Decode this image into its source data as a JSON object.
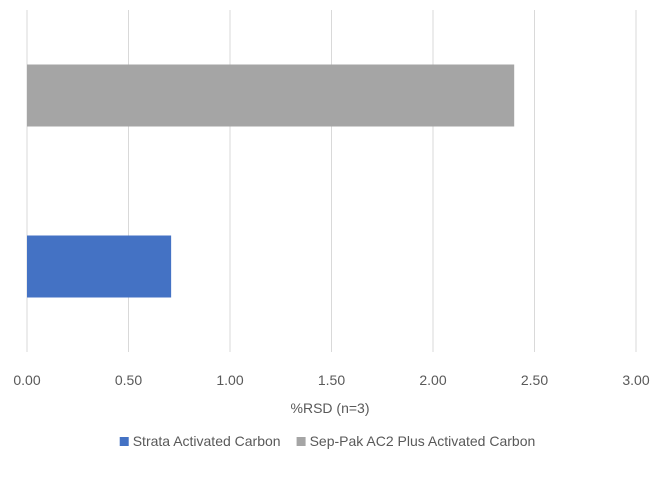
{
  "chart_data": {
    "type": "bar",
    "orientation": "horizontal",
    "title": "",
    "xlabel": "%RSD (n=3)",
    "ylabel": "",
    "xlim": [
      0,
      3.0
    ],
    "x_ticks": [
      "0.00",
      "0.50",
      "1.00",
      "1.50",
      "2.00",
      "2.50",
      "3.00"
    ],
    "grid": "vertical",
    "legend_position": "bottom",
    "series": [
      {
        "name": "Strata Activated Carbon",
        "value": 0.71,
        "color": "#4472C4"
      },
      {
        "name": "Sep-Pak AC2 Plus Activated Carbon",
        "value": 2.4,
        "color": "#A5A5A5"
      }
    ]
  }
}
